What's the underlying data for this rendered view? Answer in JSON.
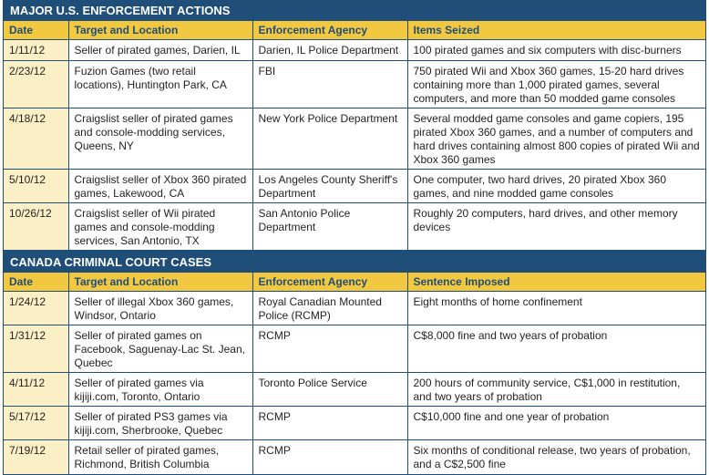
{
  "us": {
    "title": "MAJOR U.S. ENFORCEMENT ACTIONS",
    "headers": [
      "Date",
      "Target and Location",
      "Enforcement Agency",
      "Items Seized"
    ],
    "rows": [
      [
        "1/11/12",
        "Seller of pirated games, Darien, IL",
        "Darien, IL Police Department",
        "100 pirated games and six computers with disc-burners"
      ],
      [
        "2/23/12",
        "Fuzion Games (two retail locations), Huntington Park, CA",
        "FBI",
        "750 pirated Wii and Xbox 360 games, 15-20 hard drives containing more than 1,000 pirated games, several computers, and more than 50 modded game consoles"
      ],
      [
        "4/18/12",
        "Craigslist seller of pirated games and console-modding services, Queens, NY",
        "New York Police Department",
        "Several modded game consoles and game copiers, 195 pirated Xbox 360 games, and a number of computers and hard drives containing almost 800 copies of pirated Wii and Xbox 360 games"
      ],
      [
        "5/10/12",
        "Craigslist seller of Xbox 360 pirated games, Lakewood, CA",
        "Los Angeles County Sheriff's Department",
        "One computer, two hard drives, 20 pirated Xbox 360 games, and nine modded game consoles"
      ],
      [
        "10/26/12",
        "Craigslist seller of Wii pirated games and console-modding services, San Antonio, TX",
        "San Antonio Police Department",
        "Roughly 20 computers, hard drives, and other memory devices"
      ]
    ]
  },
  "canada": {
    "title": "CANADA CRIMINAL COURT CASES",
    "headers": [
      "Date",
      "Target and Location",
      "Enforcement Agency",
      "Sentence Imposed"
    ],
    "rows": [
      [
        "1/24/12",
        "Seller of illegal Xbox 360 games, Windsor, Ontario",
        "Royal Canadian Mounted Police (RCMP)",
        "Eight months of home confinement"
      ],
      [
        "1/31/12",
        "Seller of pirated games on Facebook, Saguenay-Lac St. Jean, Quebec",
        "RCMP",
        "C$8,000 fine and two years of probation"
      ],
      [
        "4/11/12",
        "Seller of pirated games via kijiji.com, Toronto, Ontario",
        "Toronto Police Service",
        "200 hours of community service, C$1,000 in restitution, and two years of probation"
      ],
      [
        "5/17/12",
        "Seller of pirated PS3 games via kijiji.com, Sherbrooke, Quebec",
        "RCMP",
        "C$10,000 fine and one year of probation"
      ],
      [
        "7/19/12",
        "Retail seller of pirated games, Richmond, British Columbia",
        "RCMP",
        "Six months of conditional release, two years of probation, and a C$2,500 fine"
      ]
    ]
  }
}
